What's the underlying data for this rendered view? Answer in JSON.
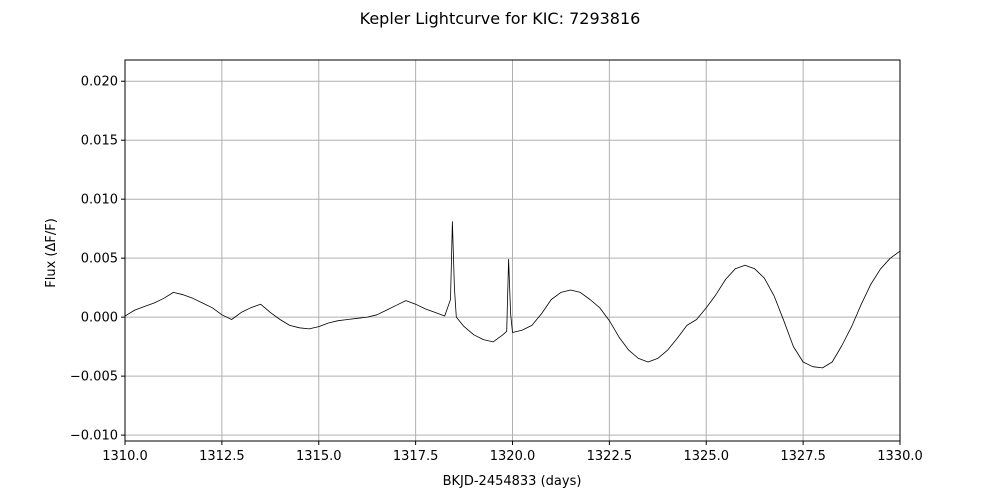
{
  "chart_data": {
    "type": "line",
    "title": "Kepler Lightcurve for KIC: 7293816",
    "xlabel": "BKJD-2454833 (days)",
    "ylabel": "Flux (ΔF/F)",
    "xlim": [
      1310.0,
      1330.0
    ],
    "ylim": [
      -0.0105,
      0.0218
    ],
    "grid": true,
    "x_ticks": [
      1310.0,
      1312.5,
      1315.0,
      1317.5,
      1320.0,
      1322.5,
      1325.0,
      1327.5,
      1330.0
    ],
    "x_tick_labels": [
      "1310.0",
      "1312.5",
      "1315.0",
      "1317.5",
      "1320.0",
      "1322.5",
      "1325.0",
      "1327.5",
      "1330.0"
    ],
    "y_ticks": [
      -0.01,
      -0.005,
      0.0,
      0.005,
      0.01,
      0.015,
      0.02
    ],
    "y_tick_labels": [
      "−0.010",
      "−0.005",
      "0.000",
      "0.005",
      "0.010",
      "0.015",
      "0.020"
    ],
    "colors": {
      "line": "#000000",
      "grid": "#b0b0b0",
      "axes": "#000000"
    },
    "series": [
      {
        "x": [
          1310.0,
          1310.25,
          1310.5,
          1310.75,
          1311.0,
          1311.25,
          1311.5,
          1311.75,
          1312.0,
          1312.25,
          1312.5,
          1312.75,
          1313.0,
          1313.25,
          1313.5,
          1313.75,
          1314.0,
          1314.25,
          1314.5,
          1314.75,
          1315.0,
          1315.25,
          1315.5,
          1315.75,
          1316.0,
          1316.25,
          1316.5,
          1316.75,
          1317.0,
          1317.25,
          1317.5,
          1317.75,
          1318.0,
          1318.25,
          1318.4,
          1318.45,
          1318.5,
          1318.55,
          1318.75,
          1319.0,
          1319.25,
          1319.5,
          1319.75,
          1319.85,
          1319.9,
          1319.95,
          1320.0,
          1320.25,
          1320.5,
          1320.75,
          1321.0,
          1321.25,
          1321.5,
          1321.75,
          1322.0,
          1322.25,
          1322.5,
          1322.75,
          1323.0,
          1323.25,
          1323.5,
          1323.75,
          1324.0,
          1324.25,
          1324.5,
          1324.75,
          1325.0,
          1325.25,
          1325.5,
          1325.75,
          1326.0,
          1326.25,
          1326.5,
          1326.75,
          1327.0,
          1327.25,
          1327.5,
          1327.75,
          1328.0,
          1328.25,
          1328.5,
          1328.75,
          1329.0,
          1329.25,
          1329.5,
          1329.75,
          1330.0
        ],
        "y": [
          0.0001,
          0.0006,
          0.0009,
          0.0012,
          0.0016,
          0.0021,
          0.0019,
          0.0016,
          0.0012,
          0.0008,
          0.0002,
          -0.0002,
          0.0004,
          0.0008,
          0.0011,
          0.0004,
          -0.0002,
          -0.0007,
          -0.0009,
          -0.001,
          -0.0008,
          -0.0005,
          -0.0003,
          -0.0002,
          -0.0001,
          0.0,
          0.0002,
          0.0006,
          0.001,
          0.0014,
          0.0011,
          0.0007,
          0.0004,
          0.0001,
          0.0015,
          0.0081,
          0.0025,
          0.0,
          -0.0008,
          -0.0015,
          -0.0019,
          -0.0021,
          -0.0015,
          -0.0012,
          0.0049,
          0.0003,
          -0.0013,
          -0.0011,
          -0.0007,
          0.0003,
          0.0015,
          0.0021,
          0.0023,
          0.0021,
          0.0015,
          0.0008,
          -0.0003,
          -0.0017,
          -0.0028,
          -0.0035,
          -0.0038,
          -0.0035,
          -0.0028,
          -0.0018,
          -0.0007,
          -0.0002,
          0.0008,
          0.0019,
          0.0032,
          0.0041,
          0.0044,
          0.0041,
          0.0033,
          0.0018,
          -0.0003,
          -0.0025,
          -0.0038,
          -0.0042,
          -0.0043,
          -0.0038,
          -0.0024,
          -0.0008,
          0.0011,
          0.0028,
          0.0041,
          0.005,
          0.0056
        ]
      }
    ]
  }
}
